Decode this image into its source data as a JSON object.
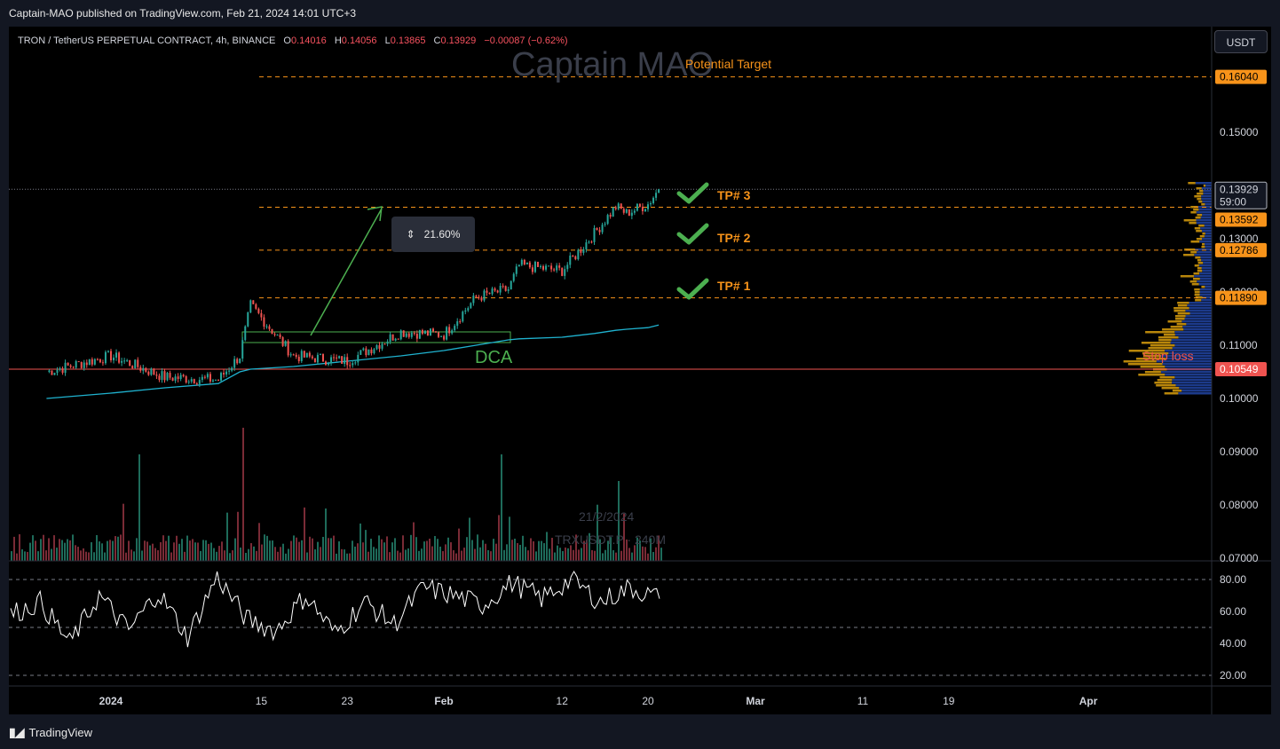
{
  "header": {
    "publisher": "Captain-MAO published on TradingView.com, Feb 21, 2024 14:01 UTC+3",
    "symbol": "TRON / TetherUS PERPETUAL CONTRACT, 4h, BINANCE",
    "open_label": "O",
    "open": "0.14016",
    "high_label": "H",
    "high": "0.14056",
    "low_label": "L",
    "low": "0.13865",
    "close_label": "C",
    "close": "0.13929",
    "change": "−0.00087 (−0.62%)",
    "currency": "USDT"
  },
  "watermark": "Captain MAO",
  "annotations": {
    "potential_target": "Potential Target",
    "tp3": "TP# 3",
    "tp2": "TP# 2",
    "tp1": "TP# 1",
    "dca": "DCA",
    "stop_loss": "Stop loss",
    "measure": "21.60%",
    "volume_date": "21/2/2024",
    "volume_symbol": "TRXUSDT.P · 240M"
  },
  "colors": {
    "background": "#000000",
    "up": "#26a69a",
    "down": "#ef5350",
    "target_line": "#f7931a",
    "stop_line": "#ef5350",
    "ma_line": "#1fb2cf",
    "checkmark": "#4caf50",
    "rsi_line": "#ffffff",
    "volume_profile": "#b8860b"
  },
  "chart_data": [
    {
      "type": "line",
      "title": "TRON / TetherUS PERPETUAL CONTRACT, 4h, BINANCE",
      "x": [
        "2023-12-26",
        "2024-01-01",
        "2024-01-06",
        "2024-01-11",
        "2024-01-13",
        "2024-01-14",
        "2024-01-18",
        "2024-01-23",
        "2024-01-28",
        "2024-02-01",
        "2024-02-04",
        "2024-02-07",
        "2024-02-08",
        "2024-02-12",
        "2024-02-15",
        "2024-02-17",
        "2024-02-18",
        "2024-02-20",
        "2024-02-21"
      ],
      "series": [
        {
          "name": "Price",
          "values": [
            0.105,
            0.108,
            0.104,
            0.1035,
            0.108,
            0.1175,
            0.108,
            0.107,
            0.1125,
            0.112,
            0.119,
            0.1205,
            0.125,
            0.124,
            0.131,
            0.136,
            0.1348,
            0.1365,
            0.1393
          ]
        },
        {
          "name": "MA",
          "values": [
            0.1,
            0.101,
            0.102,
            0.1028,
            0.105,
            0.1055,
            0.106,
            0.107,
            0.108,
            0.109,
            0.11,
            0.111,
            0.1112,
            0.1115,
            0.1122,
            0.1128,
            0.113,
            0.1133,
            0.1138
          ]
        }
      ],
      "levels": {
        "potential_target": 0.1604,
        "tp3": 0.13592,
        "tp2": 0.12786,
        "tp1": 0.1189,
        "stop_loss": 0.10549,
        "last": 0.13929
      },
      "dca_zone": [
        0.1105,
        0.1125
      ],
      "ylim": [
        0.07,
        0.17
      ],
      "yticks": [
        "0.15000",
        "0.13000",
        "0.12000",
        "0.11000",
        "0.10000",
        "0.09000",
        "0.08000",
        "0.07000"
      ],
      "price_tags": [
        "0.16040",
        "0.13929",
        "59:00",
        "0.13592",
        "0.12786",
        "0.11890",
        "0.10549"
      ],
      "xticks": [
        "2024",
        "15",
        "23",
        "Feb",
        "12",
        "20",
        "Mar",
        "11",
        "19",
        "Apr"
      ],
      "grid": false
    },
    {
      "type": "line",
      "title": "",
      "series": [
        {
          "name": "RSI",
          "values": [
            58,
            66,
            40,
            70,
            48,
            72,
            44,
            82,
            55,
            48,
            70,
            46,
            66,
            52,
            75,
            70,
            64,
            78,
            68,
            80,
            66,
            75,
            68
          ]
        }
      ],
      "ylim": [
        15,
        85
      ],
      "yticks": [
        "80.00",
        "60.00",
        "40.00",
        "20.00"
      ],
      "bands": [
        80,
        50,
        20
      ]
    }
  ]
}
